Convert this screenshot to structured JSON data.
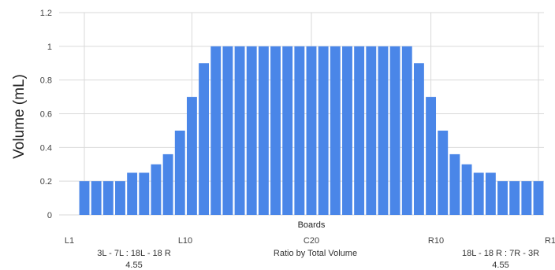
{
  "chart_data": {
    "type": "bar",
    "title": "",
    "xlabel": "Boards",
    "ylabel": "Volume (mL)",
    "ylim": [
      0,
      1.2
    ],
    "yticks": [
      "0",
      "0.2",
      "0.4",
      "0.6",
      "0.8",
      "1",
      "1.2"
    ],
    "xticks": [
      "L1",
      "L10",
      "C20",
      "R10",
      "R1"
    ],
    "grid": true,
    "legend": "none",
    "bar_color": "#4a86e8",
    "values": [
      0.2,
      0.2,
      0.2,
      0.2,
      0.25,
      0.25,
      0.3,
      0.36,
      0.5,
      0.7,
      0.9,
      1,
      1,
      1,
      1,
      1,
      1,
      1,
      1,
      1,
      1,
      1,
      1,
      1,
      1,
      1,
      1,
      1,
      0.9,
      0.7,
      0.5,
      0.36,
      0.3,
      0.25,
      0.25,
      0.2,
      0.2,
      0.2,
      0.2
    ],
    "annotations": {
      "left_ratio_label": "3L - 7L : 18L - 18 R",
      "left_ratio_value": "4.55",
      "center_label": "Ratio by Total Volume",
      "right_ratio_label": "18L - 18 R : 7R - 3R",
      "right_ratio_value": "4.55"
    }
  }
}
